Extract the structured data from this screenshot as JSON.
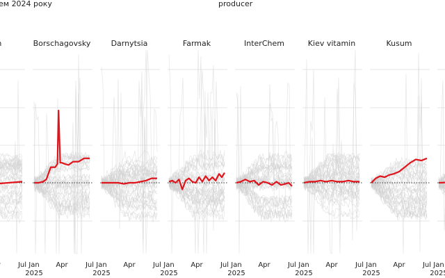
{
  "header": {
    "left_title": "ем 2024 року",
    "facet_title": "producer"
  },
  "chart_data": {
    "type": "line",
    "facet_by": "producer",
    "x_ticks": [
      "Jan\n2025",
      "Apr",
      "Jul"
    ],
    "colors": {
      "highlight": "#e0141b",
      "background": "#cfcfcf",
      "grid": "#e6e6e6",
      "baseline": "#333333"
    },
    "panels": [
      {
        "name": "ium",
        "x": [
          0,
          0.25,
          0.5,
          0.75,
          1
        ],
        "highlight": [
          0.0,
          0.01,
          -0.01,
          0.0,
          0.01
        ]
      },
      {
        "name": "Borschagovsky",
        "x": [
          0,
          0.08,
          0.16,
          0.22,
          0.3,
          0.38,
          0.42,
          0.44,
          0.47,
          0.5,
          0.55,
          0.62,
          0.7,
          0.8,
          0.9,
          1
        ],
        "highlight": [
          0.0,
          0.0,
          0.01,
          0.03,
          0.14,
          0.14,
          0.17,
          0.65,
          0.18,
          0.18,
          0.17,
          0.16,
          0.19,
          0.19,
          0.22,
          0.22
        ]
      },
      {
        "name": "Darnytsia",
        "x": [
          0,
          0.1,
          0.2,
          0.3,
          0.4,
          0.5,
          0.6,
          0.7,
          0.8,
          0.9,
          1
        ],
        "highlight": [
          0.0,
          0.0,
          0.0,
          0.0,
          -0.01,
          0.0,
          0.0,
          0.01,
          0.02,
          0.04,
          0.04
        ]
      },
      {
        "name": "Farmak",
        "x": [
          0,
          0.06,
          0.12,
          0.18,
          0.24,
          0.3,
          0.36,
          0.42,
          0.48,
          0.54,
          0.6,
          0.66,
          0.72,
          0.78,
          0.84,
          0.9,
          0.95,
          1
        ],
        "highlight": [
          0.01,
          0.02,
          0.0,
          0.03,
          -0.06,
          0.02,
          0.04,
          0.01,
          0.0,
          0.05,
          0.01,
          0.06,
          0.02,
          0.05,
          0.02,
          0.08,
          0.05,
          0.09
        ]
      },
      {
        "name": "InterChem",
        "x": [
          0,
          0.08,
          0.16,
          0.24,
          0.32,
          0.4,
          0.48,
          0.56,
          0.64,
          0.72,
          0.8,
          0.88,
          0.94,
          1
        ],
        "highlight": [
          0.0,
          0.01,
          0.03,
          0.01,
          0.02,
          -0.02,
          0.01,
          0.0,
          -0.02,
          0.01,
          -0.02,
          -0.01,
          0.0,
          -0.03
        ]
      },
      {
        "name": "Kiev vitamin",
        "x": [
          0,
          0.1,
          0.2,
          0.3,
          0.4,
          0.5,
          0.6,
          0.7,
          0.8,
          0.9,
          1
        ],
        "highlight": [
          0.0,
          0.01,
          0.01,
          0.02,
          0.01,
          0.02,
          0.01,
          0.01,
          0.02,
          0.01,
          0.01
        ]
      },
      {
        "name": "Kusum",
        "x": [
          0,
          0.08,
          0.16,
          0.24,
          0.32,
          0.4,
          0.5,
          0.6,
          0.7,
          0.8,
          0.9,
          1
        ],
        "highlight": [
          0.0,
          0.04,
          0.06,
          0.05,
          0.07,
          0.08,
          0.1,
          0.14,
          0.18,
          0.21,
          0.2,
          0.22
        ]
      },
      {
        "name": "",
        "x": [
          0,
          0.5,
          1
        ],
        "highlight": [
          0.0,
          0.01,
          0.0
        ]
      }
    ]
  }
}
